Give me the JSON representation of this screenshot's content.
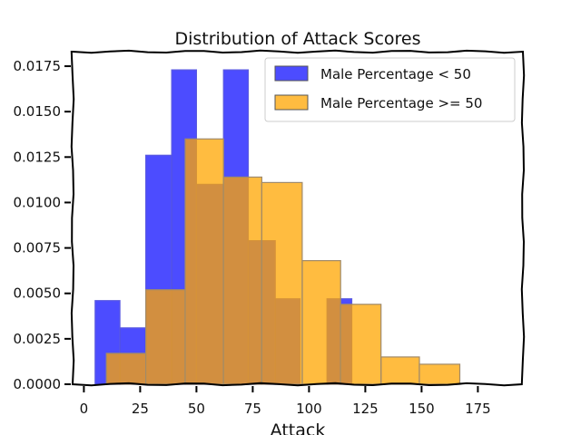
{
  "chart_data": {
    "type": "bar",
    "title": "Distribution of Attack Scores",
    "xlabel": "Attack",
    "ylabel": "",
    "xlim": [
      -5,
      195
    ],
    "ylim": [
      0,
      0.0183
    ],
    "xticks": [
      0,
      25,
      50,
      75,
      100,
      125,
      150,
      175
    ],
    "yticks": [
      "0.0000",
      "0.0025",
      "0.0050",
      "0.0075",
      "0.0100",
      "0.0125",
      "0.0150",
      "0.0175"
    ],
    "grid": false,
    "legend_position": "top-right",
    "series": [
      {
        "name": "Male Percentage < 50",
        "color": "#0000ff",
        "opacity": 0.7,
        "bins": [
          {
            "x0": 5,
            "x1": 16,
            "value": 0.0046
          },
          {
            "x0": 16,
            "x1": 27.5,
            "value": 0.0031
          },
          {
            "x0": 27.5,
            "x1": 39,
            "value": 0.0126
          },
          {
            "x0": 39,
            "x1": 50,
            "value": 0.0173
          },
          {
            "x0": 50,
            "x1": 62,
            "value": 0.011
          },
          {
            "x0": 62,
            "x1": 73,
            "value": 0.0173
          },
          {
            "x0": 73,
            "x1": 85,
            "value": 0.0079
          },
          {
            "x0": 85,
            "x1": 96,
            "value": 0.0047
          },
          {
            "x0": 96,
            "x1": 108,
            "value": 0.0
          },
          {
            "x0": 108,
            "x1": 119,
            "value": 0.0047
          }
        ]
      },
      {
        "name": "Male Percentage >= 50",
        "color": "#ffa500",
        "opacity": 0.75,
        "bins": [
          {
            "x0": 10,
            "x1": 27.5,
            "value": 0.0017
          },
          {
            "x0": 27.5,
            "x1": 45,
            "value": 0.0052
          },
          {
            "x0": 45,
            "x1": 62,
            "value": 0.0135
          },
          {
            "x0": 62,
            "x1": 79,
            "value": 0.0114
          },
          {
            "x0": 79,
            "x1": 97,
            "value": 0.0111
          },
          {
            "x0": 97,
            "x1": 114,
            "value": 0.0068
          },
          {
            "x0": 114,
            "x1": 132,
            "value": 0.0044
          },
          {
            "x0": 132,
            "x1": 149,
            "value": 0.0015
          },
          {
            "x0": 149,
            "x1": 167,
            "value": 0.0011
          },
          {
            "x0": 167,
            "x1": 184,
            "value": 0.0
          }
        ]
      }
    ]
  }
}
